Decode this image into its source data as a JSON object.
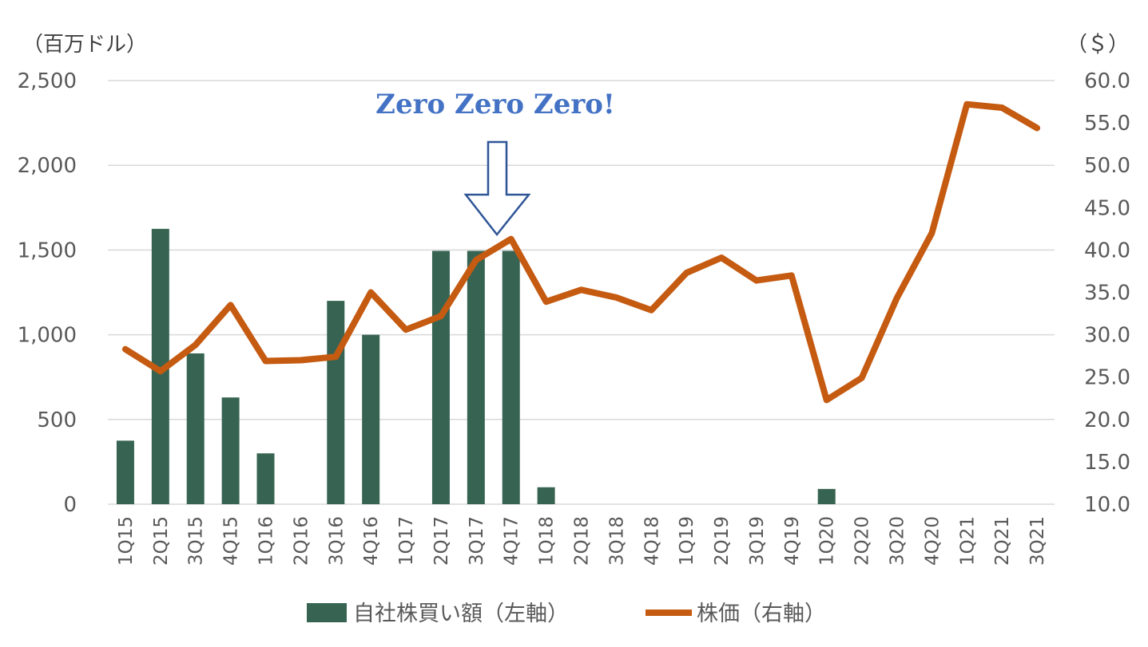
{
  "chart_data": {
    "type": "bar+line",
    "categories": [
      "1Q15",
      "2Q15",
      "3Q15",
      "4Q15",
      "1Q16",
      "2Q16",
      "3Q16",
      "4Q16",
      "1Q17",
      "2Q17",
      "3Q17",
      "4Q17",
      "1Q18",
      "2Q18",
      "3Q18",
      "4Q18",
      "1Q19",
      "2Q19",
      "3Q19",
      "4Q19",
      "1Q20",
      "2Q20",
      "3Q20",
      "4Q20",
      "1Q21",
      "2Q21",
      "3Q21"
    ],
    "series": [
      {
        "name": "自社株買い額（左軸）",
        "type": "bar",
        "axis": "left",
        "color": "#376452",
        "values": [
          375,
          1625,
          890,
          630,
          300,
          0,
          1200,
          1000,
          0,
          1495,
          1495,
          1495,
          100,
          0,
          0,
          0,
          0,
          0,
          0,
          0,
          90,
          0,
          0,
          0,
          0,
          0,
          0
        ]
      },
      {
        "name": "株価（右軸）",
        "type": "line",
        "axis": "right",
        "color": "#C55A11",
        "values": [
          28.3,
          25.7,
          28.8,
          33.5,
          26.9,
          27.0,
          27.4,
          35.0,
          30.6,
          32.2,
          38.8,
          41.3,
          33.9,
          35.3,
          34.4,
          32.9,
          37.3,
          39.1,
          36.4,
          37.0,
          22.3,
          24.9,
          34.3,
          42.0,
          57.2,
          56.8,
          54.4
        ]
      }
    ],
    "left_axis": {
      "unit": "（百万ドル）",
      "range": [
        0,
        2500
      ],
      "ticks": [
        0,
        500,
        1000,
        1500,
        2000,
        2500
      ],
      "tick_labels": [
        "0",
        "500",
        "1,000",
        "1,500",
        "2,000",
        "2,500"
      ]
    },
    "right_axis": {
      "unit": "（＄）",
      "range": [
        10,
        60
      ],
      "ticks": [
        10,
        15,
        20,
        25,
        30,
        35,
        40,
        45,
        50,
        55,
        60
      ],
      "tick_labels": [
        "10.0",
        "15.0",
        "20.0",
        "25.0",
        "30.0",
        "35.0",
        "40.0",
        "45.0",
        "50.0",
        "55.0",
        "60.0"
      ]
    },
    "grid": true,
    "legend": "bottom",
    "annotation": {
      "text": "Zero Zero Zero!",
      "color": "#4472C4",
      "arrow": "down-arrow-outline",
      "arrow_color": "#2F5597",
      "target_category": "4Q17"
    }
  }
}
